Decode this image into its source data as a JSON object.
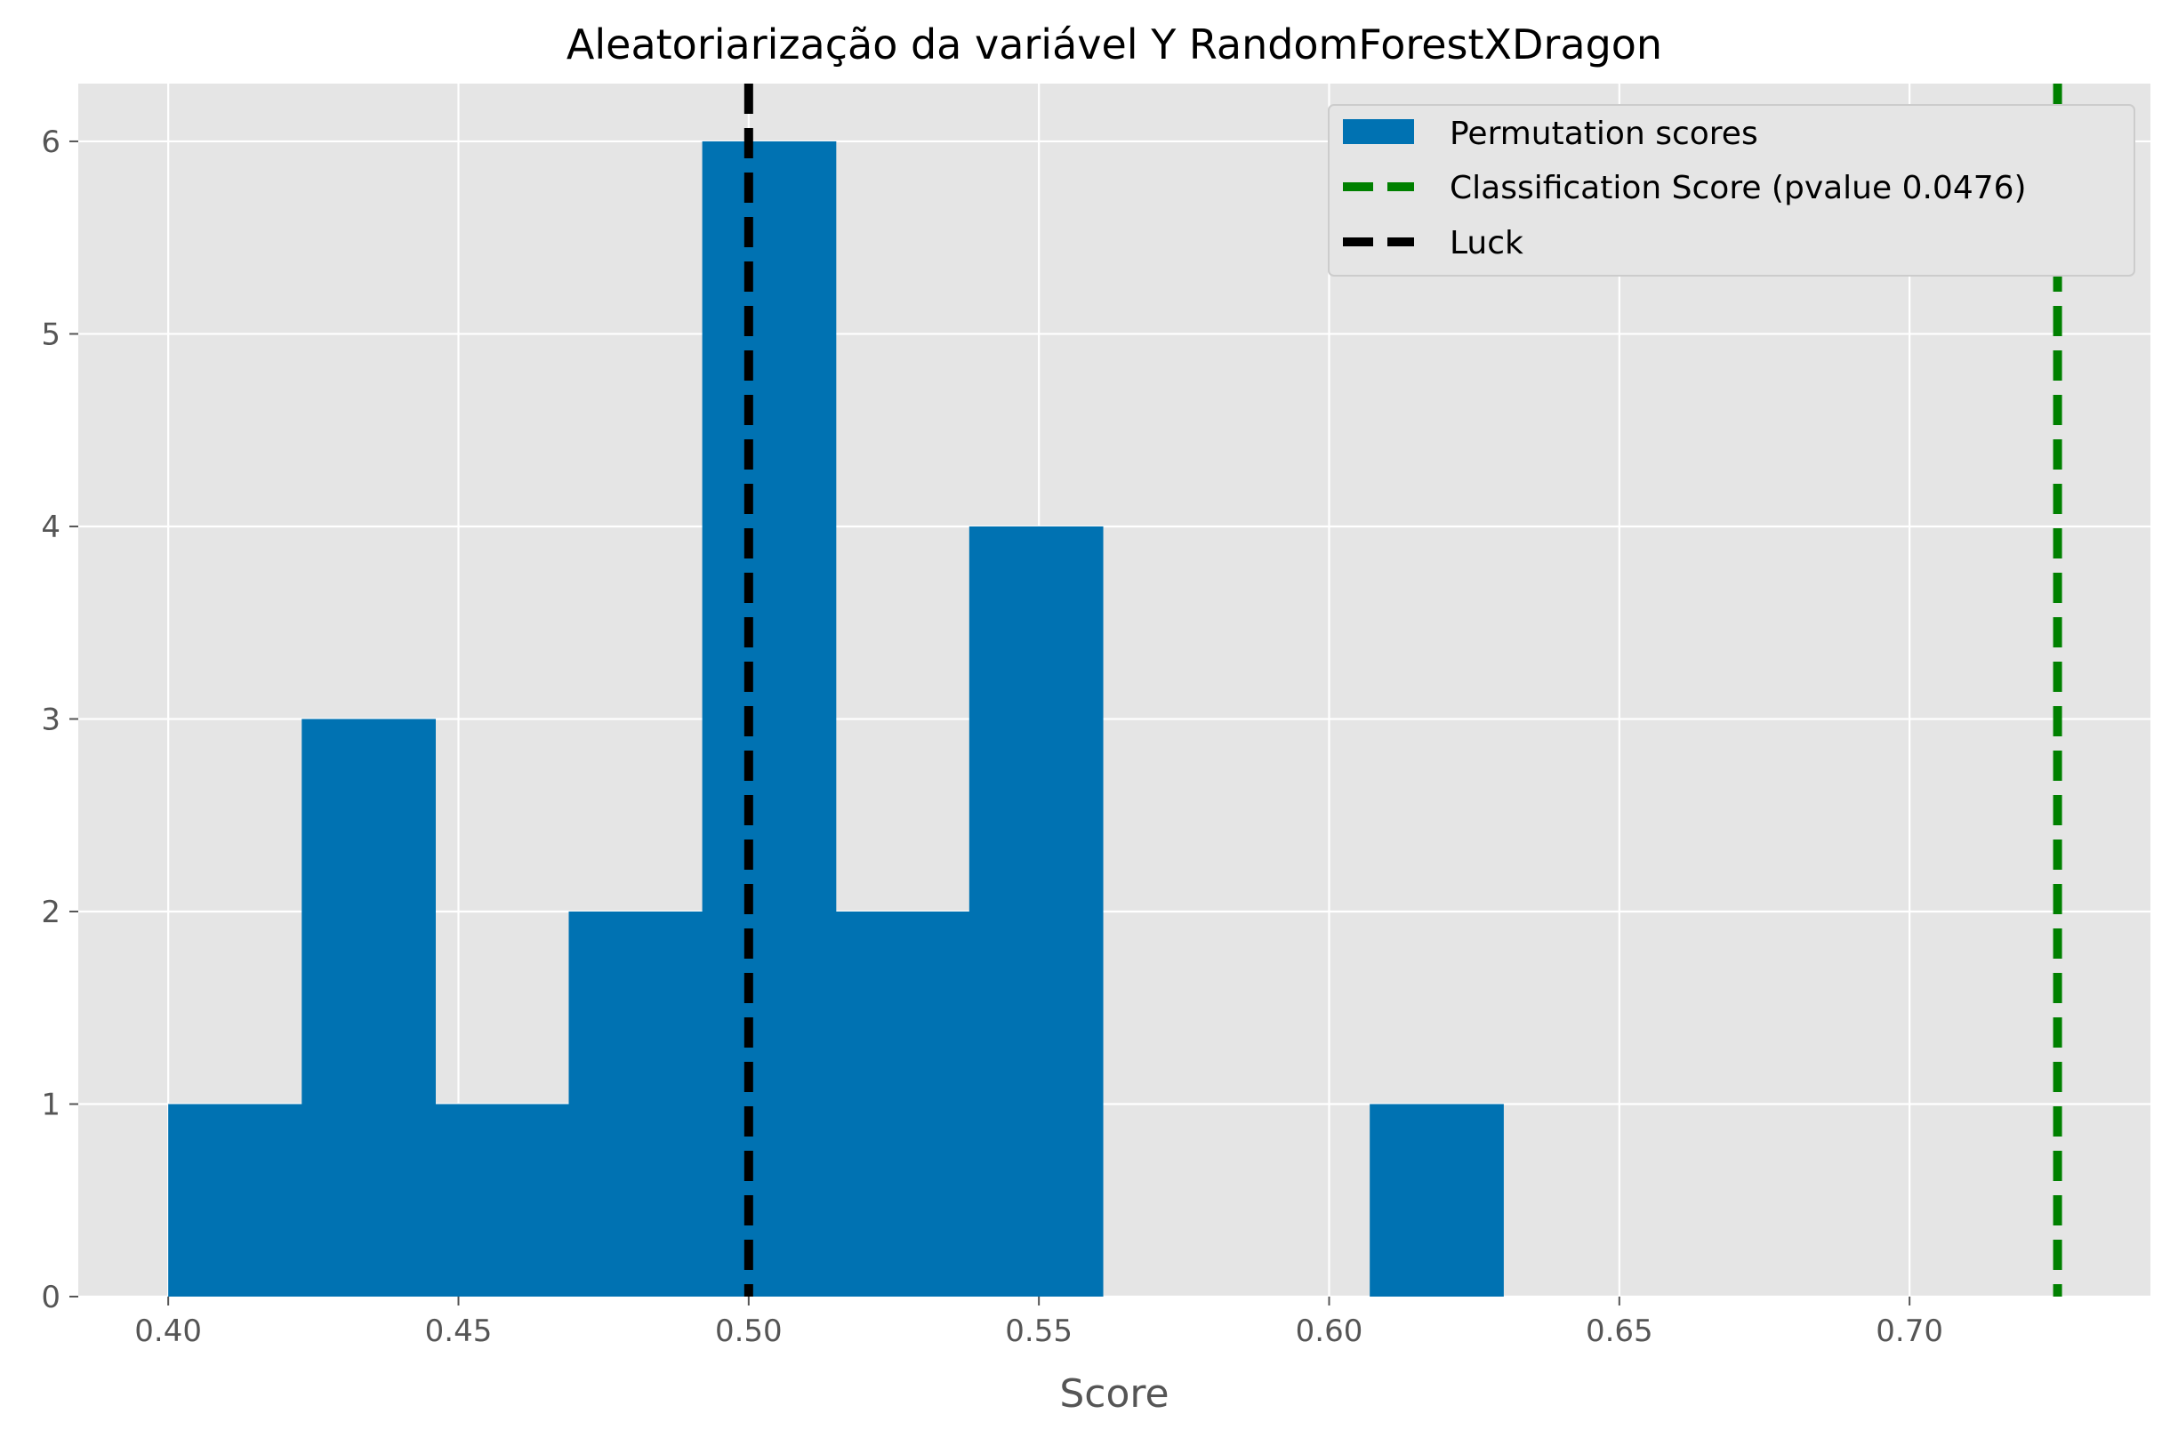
{
  "chart_data": {
    "type": "bar",
    "title": "Aleatoriarização da variável Y RandomForestXDragon",
    "xlabel": "Score",
    "ylabel": "",
    "xlim": [
      0.3845,
      0.7415
    ],
    "ylim": [
      0,
      6.3
    ],
    "xticks": [
      0.4,
      0.45,
      0.5,
      0.55,
      0.6,
      0.65,
      0.7
    ],
    "xtick_labels": [
      "0.40",
      "0.45",
      "0.50",
      "0.55",
      "0.60",
      "0.65",
      "0.70"
    ],
    "yticks": [
      0,
      1,
      2,
      3,
      4,
      5,
      6
    ],
    "ytick_labels": [
      "0",
      "1",
      "2",
      "3",
      "4",
      "5",
      "6"
    ],
    "grid": true,
    "legend_position": "top-right",
    "histogram": {
      "name": "Permutation scores",
      "color": "#0072B2",
      "bin_edges": [
        0.4,
        0.423,
        0.446,
        0.469,
        0.492,
        0.515,
        0.538,
        0.561,
        0.584,
        0.607,
        0.63
      ],
      "counts": [
        1,
        3,
        1,
        2,
        6,
        2,
        4,
        0,
        0,
        1
      ]
    },
    "vlines": [
      {
        "name": "Classification Score (pvalue 0.0476)",
        "x": 0.7255,
        "color": "#008000"
      },
      {
        "name": "Luck",
        "x": 0.5,
        "color": "#000000"
      }
    ],
    "colors": {
      "plot_background": "#E5E5E5",
      "grid": "#FFFFFF"
    }
  }
}
